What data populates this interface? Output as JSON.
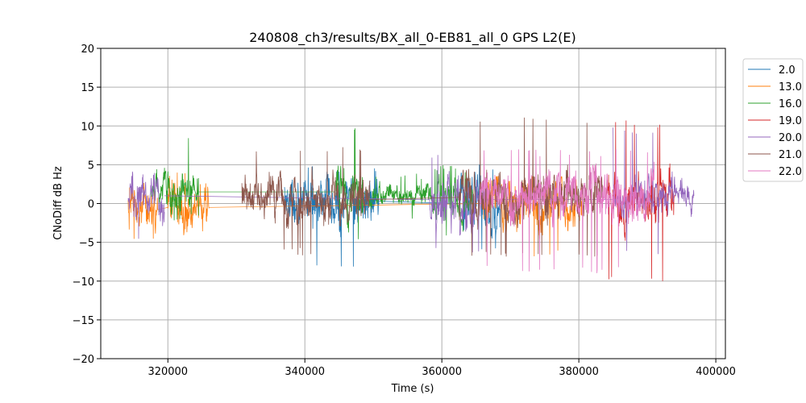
{
  "chart_data": {
    "type": "line",
    "title": "240808_ch3/results/BX_all_0-EB81_all_0 GPS L2(E)",
    "xlabel": "Time (s)",
    "ylabel": "CNoDiff dB Hz",
    "xlim": [
      310200,
      401400
    ],
    "ylim": [
      -20,
      20
    ],
    "x_ticks": [
      320000,
      340000,
      360000,
      380000,
      400000
    ],
    "y_ticks": [
      -20,
      -15,
      -10,
      -5,
      0,
      5,
      10,
      15,
      20
    ],
    "grid": true,
    "legend_position": "outside-right-top",
    "series": [
      {
        "name": "2.0",
        "color": "#1f77b4",
        "segments": [
          {
            "x_start": 337000,
            "x_end": 350800,
            "center": 0.3,
            "amp": 2.6,
            "min": -8.2,
            "max": 5.0
          },
          {
            "x_start": 362500,
            "x_end": 368500,
            "center": 0.0,
            "amp": 3.0,
            "min": -6.5,
            "max": 5.0
          }
        ]
      },
      {
        "name": "13.0",
        "color": "#ff7f0e",
        "segments": [
          {
            "x_start": 314200,
            "x_end": 318500,
            "center": -0.8,
            "amp": 2.6,
            "min": -5.5,
            "max": 3.0
          },
          {
            "x_start": 320000,
            "x_end": 326000,
            "center": -0.5,
            "amp": 2.5,
            "min": -5.0,
            "max": 4.0
          },
          {
            "x_start": 366000,
            "x_end": 380500,
            "center": 0.0,
            "amp": 2.8,
            "min": -7.0,
            "max": 3.5
          }
        ]
      },
      {
        "name": "16.0",
        "color": "#2ca02c",
        "segments": [
          {
            "x_start": 317500,
            "x_end": 324500,
            "center": 1.5,
            "amp": 2.3,
            "min": -2.2,
            "max": 8.8
          },
          {
            "x_start": 344500,
            "x_end": 348500,
            "center": 1.5,
            "amp": 3.0,
            "min": -5.0,
            "max": 10.5
          },
          {
            "x_start": 349000,
            "x_end": 358500,
            "center": 1.0,
            "amp": 1.2,
            "min": -2.0,
            "max": 4.0
          },
          {
            "x_start": 358500,
            "x_end": 364500,
            "center": 0.5,
            "amp": 2.0,
            "min": -4.5,
            "max": 5.0
          }
        ]
      },
      {
        "name": "19.0",
        "color": "#d62728",
        "segments": [
          {
            "x_start": 384000,
            "x_end": 394000,
            "center": 0.5,
            "amp": 2.8,
            "min": -10.0,
            "max": 10.8
          }
        ]
      },
      {
        "name": "20.0",
        "color": "#9467bd",
        "segments": [
          {
            "x_start": 314200,
            "x_end": 319500,
            "center": 1.0,
            "amp": 2.3,
            "min": -5.3,
            "max": 5.0
          },
          {
            "x_start": 358200,
            "x_end": 365800,
            "center": 0.5,
            "amp": 3.0,
            "min": -6.5,
            "max": 6.5
          },
          {
            "x_start": 385000,
            "x_end": 396800,
            "center": 0.5,
            "amp": 2.0,
            "min": -7.0,
            "max": 9.8
          }
        ]
      },
      {
        "name": "21.0",
        "color": "#8c564b",
        "segments": [
          {
            "x_start": 330800,
            "x_end": 349500,
            "center": 0.5,
            "amp": 2.5,
            "min": -6.7,
            "max": 7.5
          },
          {
            "x_start": 362500,
            "x_end": 383500,
            "center": 0.8,
            "amp": 2.8,
            "min": -7.0,
            "max": 11.2
          }
        ]
      },
      {
        "name": "22.0",
        "color": "#e377c2",
        "segments": [
          {
            "x_start": 365500,
            "x_end": 391000,
            "center": 0.8,
            "amp": 2.6,
            "min": -9.0,
            "max": 7.0
          }
        ]
      }
    ]
  }
}
